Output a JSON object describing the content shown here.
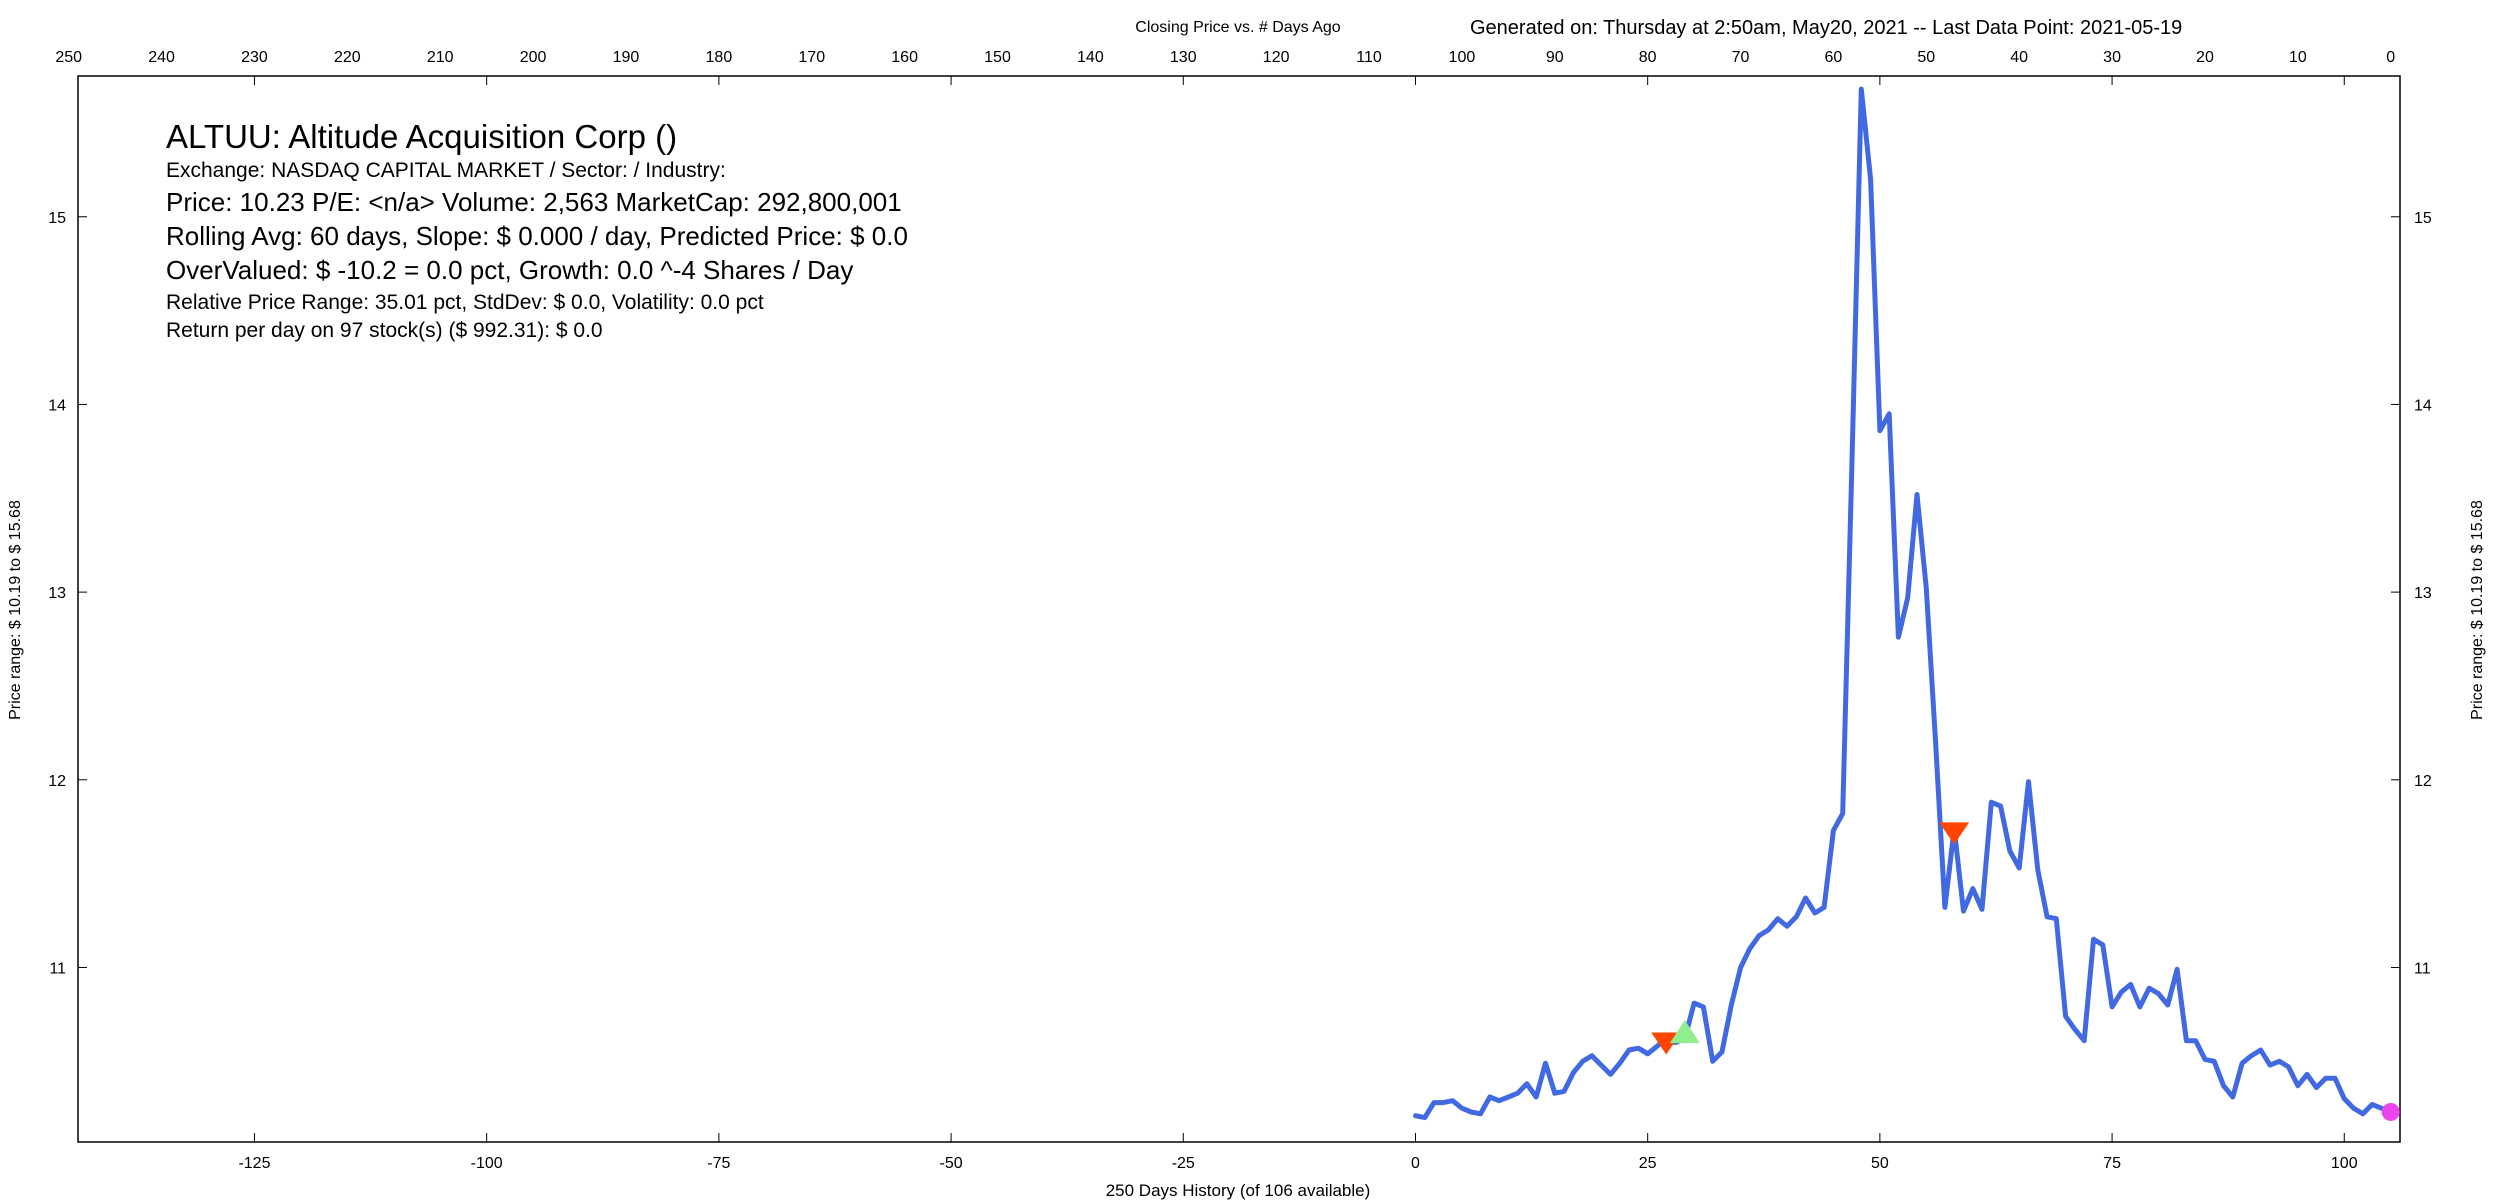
{
  "header": {
    "top_title": "Closing Price vs. # Days Ago",
    "generated": "Generated on:  Thursday at  2:50am, May20, 2021  --  Last Data Point:  2021-05-19"
  },
  "info": {
    "title": "ALTUU:  Altitude Acquisition Corp  ()",
    "exchange": "Exchange: NASDAQ CAPITAL MARKET  /  Sector:   /  Industry:",
    "price": "Price: 10.23  P/E: <n/a> Volume: 2,563  MarketCap: 292,800,001",
    "rolling": "Rolling Avg: 60 days, Slope: $ 0.000 / day, Predicted Price: $ 0.0",
    "overvalued": "OverValued: $ -10.2 = 0.0 pct,  Growth: 0.0 ^-4 Shares / Day",
    "range": "Relative Price Range: 35.01 pct, StdDev: $ 0.0, Volatility: 0.0 pct",
    "return": "Return per day on 97 stock(s) ($ 992.31): $ 0.0"
  },
  "axes": {
    "xlabel": "250 Days History (of 106 available)",
    "ylabel_left": "Price range:  $ 10.19  to  $ 15.68",
    "ylabel_right": "Price range: $ 10.19  to  $ 15.68"
  },
  "colors": {
    "line": "#4169e1",
    "sell_marker": "#ff4500",
    "buy_marker": "#90ee90",
    "last_point": "#ee44ee"
  },
  "chart_data": {
    "type": "line",
    "title": "Closing Price vs. # Days Ago",
    "xlabel": "250 Days History (of 106 available)",
    "ylabel": "Price range:  $ 10.19  to  $ 15.68",
    "xlim": [
      -144,
      106
    ],
    "ylim": [
      10.07,
      15.75
    ],
    "x_ticks": [
      -125,
      -100,
      -75,
      -50,
      -25,
      0,
      25,
      50,
      75,
      100
    ],
    "x2_ticks": [
      250,
      240,
      230,
      220,
      210,
      200,
      190,
      180,
      170,
      160,
      150,
      140,
      130,
      120,
      110,
      100,
      90,
      80,
      70,
      60,
      50,
      40,
      30,
      20,
      10,
      0
    ],
    "y_ticks": [
      11,
      12,
      13,
      14,
      15
    ],
    "grid": false,
    "series": [
      {
        "x": [
          0,
          1,
          2,
          3,
          4,
          5,
          6,
          7,
          8,
          9,
          10,
          11,
          12,
          13,
          14,
          15,
          16,
          17,
          18,
          19,
          20,
          21,
          22,
          23,
          24,
          25,
          26,
          27,
          28,
          29,
          30,
          31,
          32,
          33,
          34,
          35,
          36,
          37,
          38,
          39,
          40,
          41,
          42,
          43,
          44,
          45,
          46,
          47,
          48,
          49,
          50,
          51,
          52,
          53,
          54,
          55,
          56,
          57,
          58,
          59,
          60,
          61,
          62,
          63,
          64,
          65,
          66,
          67,
          68,
          69,
          70,
          71,
          72,
          73,
          74,
          75,
          76,
          77,
          78,
          79,
          80,
          81,
          82,
          83,
          84,
          85,
          86,
          87,
          88,
          89,
          90,
          91,
          92,
          93,
          94,
          95,
          96,
          97,
          98,
          99,
          100,
          101,
          102,
          103,
          104,
          105
        ],
        "y": [
          10.21,
          10.2,
          10.28,
          10.28,
          10.29,
          10.25,
          10.23,
          10.22,
          10.31,
          10.29,
          10.31,
          10.33,
          10.38,
          10.31,
          10.49,
          10.33,
          10.34,
          10.44,
          10.5,
          10.53,
          10.48,
          10.43,
          10.49,
          10.56,
          10.57,
          10.54,
          10.58,
          10.62,
          10.6,
          10.62,
          10.81,
          10.79,
          10.5,
          10.55,
          10.8,
          11,
          11.1,
          11.17,
          11.2,
          11.26,
          11.22,
          11.27,
          11.37,
          11.29,
          11.32,
          11.73,
          11.82,
          13.7,
          15.68,
          15.2,
          13.86,
          13.95,
          12.76,
          12.97,
          13.52,
          13.02,
          12.2,
          11.32,
          11.74,
          11.3,
          11.42,
          11.31,
          11.88,
          11.86,
          11.62,
          11.53,
          11.99,
          11.52,
          11.27,
          11.26,
          10.74,
          10.67,
          10.61,
          11.15,
          11.12,
          10.79,
          10.87,
          10.91,
          10.79,
          10.89,
          10.86,
          10.8,
          10.99,
          10.61,
          10.61,
          10.51,
          10.5,
          10.37,
          10.31,
          10.49,
          10.53,
          10.56,
          10.48,
          10.5,
          10.47,
          10.37,
          10.43,
          10.36,
          10.41,
          10.41,
          10.3,
          10.25,
          10.22,
          10.27,
          10.25,
          10.23
        ]
      }
    ],
    "markers": [
      {
        "type": "sell",
        "x": 27,
        "y": 10.6
      },
      {
        "type": "buy",
        "x": 29,
        "y": 10.65
      },
      {
        "type": "sell",
        "x": 58,
        "y": 11.72
      },
      {
        "type": "last",
        "x": 105,
        "y": 10.23
      }
    ]
  }
}
